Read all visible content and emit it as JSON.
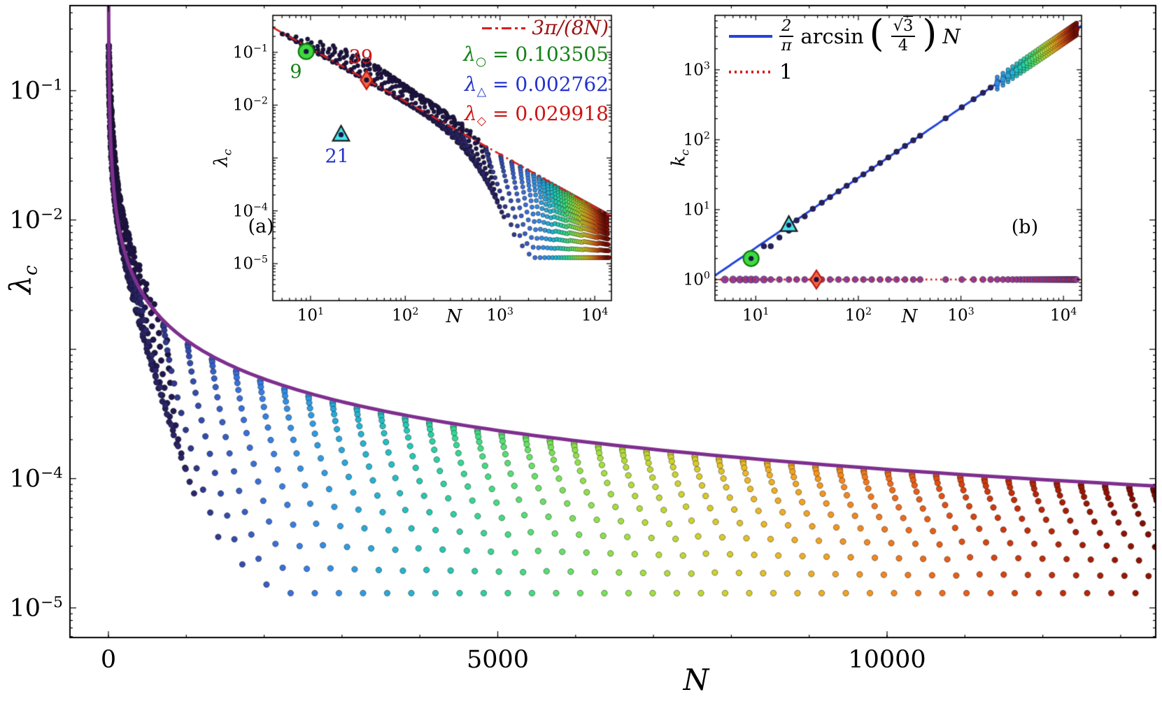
{
  "colors": {
    "black": "#000000",
    "envelope": "#7E2F8E",
    "dashdot_red": "#d42020",
    "blue_line": "#2244dd",
    "dotted_red": "#d42020",
    "k1_dots": "#8a3f9e",
    "navy": "#262060",
    "marker_green_fill": "#3fd93f",
    "marker_green_edge": "#0c7a0c",
    "marker_cyan_fill": "#42e4ee",
    "marker_cyan_edge": "#1b1b1b",
    "marker_diamond_fill": "#f2653c",
    "marker_diamond_edge": "#c01818",
    "marker_center": "#1a1245",
    "text_green": "#148014",
    "text_blue": "#2233cc",
    "text_red": "#cc1414",
    "legend_formula_red": "#9c1212"
  },
  "chart_data": [
    {
      "id": "main",
      "type": "scatter",
      "xlabel": "N",
      "ylabel": {
        "sym": "λ",
        "sub": "c"
      },
      "x_scale": "linear",
      "y_scale": "log",
      "xlim": [
        -494,
        13450
      ],
      "ylim": [
        5.9e-06,
        0.455
      ],
      "x_ticks": [
        {
          "v": 0,
          "label": "0"
        },
        {
          "v": 5000,
          "label": "5000"
        },
        {
          "v": 10000,
          "label": "10000"
        }
      ],
      "x_minor_step": 1000,
      "y_ticks": [
        {
          "v": 0.1,
          "exp": "−1"
        },
        {
          "v": 0.01,
          "exp": "−2"
        },
        {
          "v": 0.0001,
          "exp": "−4"
        },
        {
          "v": 1e-05,
          "exp": "−5"
        }
      ],
      "envelope": {
        "label": "3π/(8N)",
        "coef": 1.1780972,
        "color_key": "envelope",
        "width": 5
      },
      "fans": {
        "N": [
          5,
          6,
          7,
          8,
          9,
          10,
          12,
          14,
          17,
          21,
          25,
          30,
          36,
          44,
          53,
          64,
          77,
          93,
          112,
          135,
          163,
          196,
          236,
          285,
          343,
          400,
          710,
          1020,
          1330,
          1640,
          1950,
          2260,
          2570,
          2880,
          3190,
          3500,
          3810,
          4120,
          4430,
          4740,
          5050,
          5360,
          5670,
          5980,
          6290,
          6600,
          6910,
          7220,
          7530,
          7840,
          8150,
          8460,
          8770,
          9080,
          9390,
          9700,
          10010,
          10320,
          10630,
          10940,
          11250,
          11560,
          11870,
          12180,
          12490,
          12800,
          13110,
          13420
        ],
        "bottom_coef": 0.25,
        "bottom_exp": -1.35,
        "bottom_min": 1.3e-05,
        "top_factor": 0.95,
        "tilt_cap": 700,
        "tilt_slope": 15,
        "pts_base": 8,
        "pts_per_decade": 6,
        "curve_exp": 2.0,
        "tilt_exp": 1.3,
        "dot_radius": 4.2
      },
      "colormap": [
        "#1c1040",
        "#2c2a72",
        "#3350b5",
        "#3a74e0",
        "#2f97e6",
        "#24b4d2",
        "#25ccae",
        "#3fdd82",
        "#6fe35c",
        "#a5e03c",
        "#cdd32b",
        "#e9bd24",
        "#f59e1f",
        "#f1751b",
        "#e04e12",
        "#c22d0a",
        "#9c1604",
        "#780a02"
      ],
      "color_exp": 0.85
    },
    {
      "id": "inset_a",
      "type": "scatter",
      "panel_label": "(a)",
      "xlabel": "N",
      "ylabel": {
        "sym": "λ",
        "sub": "c"
      },
      "x_scale": "log",
      "y_scale": "log",
      "xlim": [
        4,
        15000
      ],
      "ylim": [
        2e-06,
        0.5
      ],
      "x_ticks": [
        {
          "v": 10,
          "exp": "1"
        },
        {
          "v": 100,
          "exp": "2"
        },
        {
          "v": 1000,
          "exp": "3"
        },
        {
          "v": 10000,
          "exp": "4"
        }
      ],
      "y_ticks": [
        {
          "v": 0.1,
          "exp": "−1"
        },
        {
          "v": 0.01,
          "exp": "−2"
        },
        {
          "v": 0.0001,
          "exp": "−4"
        },
        {
          "v": 1e-05,
          "exp": "−5"
        }
      ],
      "line": {
        "label": "3π/(8N)",
        "coef": 1.1780972,
        "style": "dashdot",
        "color_key": "dashdot_red",
        "width": 2.6
      },
      "dot_radius": 3.1,
      "markers": [
        {
          "shape": "circle",
          "N": 9,
          "value": 0.103505,
          "fill_key": "marker_green_fill",
          "edge_key": "marker_green_edge",
          "size": 11
        },
        {
          "shape": "diamond",
          "N": 39,
          "value": 0.029918,
          "fill_key": "marker_diamond_fill",
          "edge_key": "marker_diamond_edge",
          "size": 12
        },
        {
          "shape": "triangle",
          "N": 21,
          "value": 0.002762,
          "fill_key": "marker_cyan_fill",
          "edge_key": "marker_cyan_edge",
          "size": 12
        }
      ],
      "annotations": [
        {
          "text": "9",
          "x": 7.0,
          "y": 0.042,
          "color_key": "text_green"
        },
        {
          "text": "39",
          "x": 34,
          "y": 0.08,
          "color_key": "text_red"
        },
        {
          "text": "21",
          "x": 19,
          "y": 0.00105,
          "color_key": "text_blue"
        },
        {
          "text": "(a)",
          "x": 3.0,
          "y": 5e-05,
          "color_key": "black"
        }
      ],
      "legend": {
        "rows": [
          {
            "sample": "dashdot",
            "text": "3π/(8N)",
            "color_key": "legend_formula_red"
          },
          {
            "sym": "λ",
            "sub": "○",
            "value": "= 0.103505",
            "color_key": "text_green"
          },
          {
            "sym": "λ",
            "sub": "△",
            "value": "= 0.002762",
            "color_key": "text_blue"
          },
          {
            "sym": "λ",
            "sub": "◇",
            "value": "= 0.029918",
            "color_key": "text_red"
          }
        ]
      }
    },
    {
      "id": "inset_b",
      "type": "scatter",
      "panel_label": "(b)",
      "xlabel": "N",
      "ylabel": {
        "sym": "k",
        "sub": "c"
      },
      "x_scale": "log",
      "y_scale": "log",
      "xlim": [
        4,
        15000
      ],
      "ylim": [
        0.5,
        6000
      ],
      "x_ticks": [
        {
          "v": 10,
          "exp": "1"
        },
        {
          "v": 100,
          "exp": "2"
        },
        {
          "v": 1000,
          "exp": "3"
        },
        {
          "v": 10000,
          "exp": "4"
        }
      ],
      "y_ticks": [
        {
          "v": 1,
          "exp": "0"
        },
        {
          "v": 10,
          "exp": "1"
        },
        {
          "v": 100,
          "exp": "2"
        },
        {
          "v": 1000,
          "exp": "3"
        }
      ],
      "line": {
        "coef": 0.285073,
        "style": "solid",
        "color_key": "blue_line",
        "width": 3
      },
      "hline": {
        "value": 1,
        "style": "dotted",
        "color_key": "dotted_red",
        "width": 2.6,
        "label": "1"
      },
      "k1_dot_radius": 4.4,
      "line_dot_radius": 4.0,
      "band": {
        "start_N": 2000,
        "offsets": [
          0.82,
          0.9,
          1,
          1.11,
          1.22
        ],
        "radius": 3
      },
      "markers": [
        {
          "shape": "circle",
          "N": 9,
          "value": 2,
          "fill_key": "marker_green_fill",
          "edge_key": "marker_green_edge",
          "size": 11
        },
        {
          "shape": "triangle",
          "N": 21,
          "value": 6,
          "fill_key": "marker_cyan_fill",
          "edge_key": "marker_cyan_edge",
          "size": 12
        },
        {
          "shape": "diamond",
          "N": 39,
          "value": 1,
          "fill_key": "marker_diamond_fill",
          "edge_key": "marker_diamond_edge",
          "size": 12
        }
      ],
      "annotations": [
        {
          "text": "(b)",
          "x": 4200,
          "y": 5.6,
          "color_key": "black"
        }
      ],
      "legend": {
        "formula": {
          "frac_num": "2",
          "frac_den": "π",
          "fn": "arcsin",
          "sqrt_arg": "3",
          "denom": "4",
          "tail": "N"
        },
        "unit_label": "1"
      }
    }
  ]
}
